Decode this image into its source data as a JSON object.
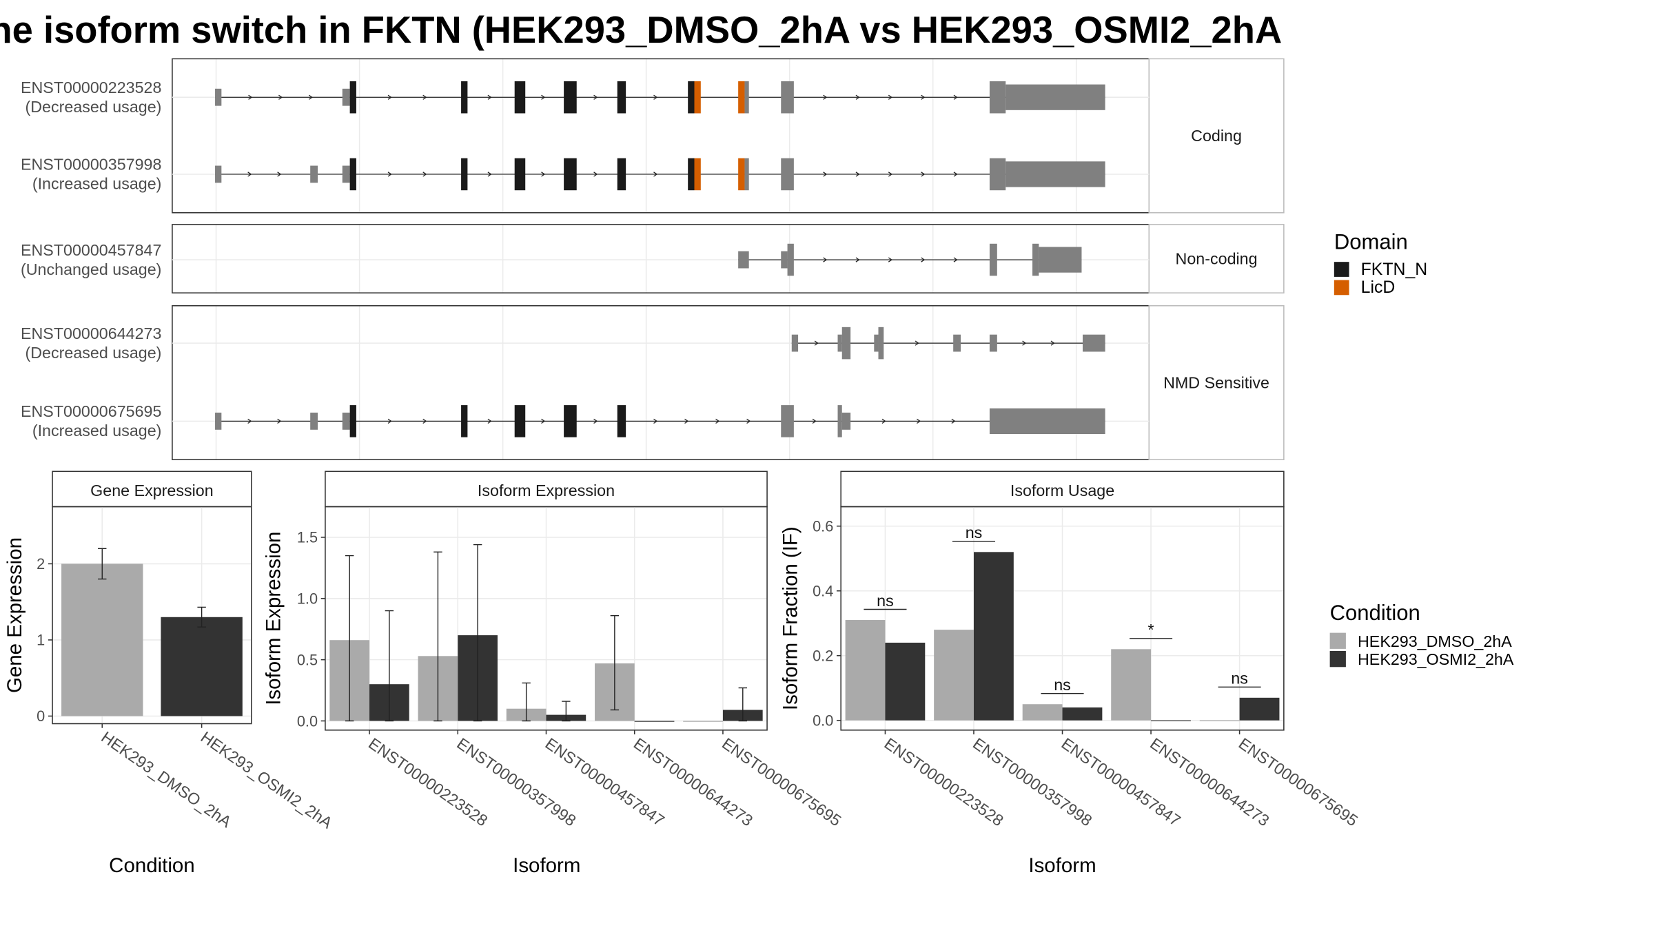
{
  "title": "he isoform switch in FKTN (HEK293_DMSO_2hA vs HEK293_OSMI2_2hA",
  "colors": {
    "fktn_n": "#1a1a1a",
    "licd": "#d55e00",
    "exon_plain": "#808080",
    "dmso": "#aaaaaa",
    "osmi2": "#333333"
  },
  "legends": {
    "domain": {
      "title": "Domain",
      "items": [
        {
          "label": "FKTN_N",
          "color": "#1a1a1a"
        },
        {
          "label": "LicD",
          "color": "#d55e00"
        }
      ]
    },
    "condition": {
      "title": "Condition",
      "items": [
        {
          "label": "HEK293_DMSO_2hA",
          "color": "#aaaaaa"
        },
        {
          "label": "HEK293_OSMI2_2hA",
          "color": "#333333"
        }
      ]
    }
  },
  "transcript_panels": [
    {
      "label": "Coding",
      "transcripts": [
        {
          "id": "ENST00000223528",
          "usage": "(Decreased usage)"
        },
        {
          "id": "ENST00000357998",
          "usage": "(Increased usage)"
        }
      ]
    },
    {
      "label": "Non-coding",
      "transcripts": [
        {
          "id": "ENST00000457847",
          "usage": "(Unchanged usage)"
        }
      ]
    },
    {
      "label": "NMD Sensitive",
      "transcripts": [
        {
          "id": "ENST00000644273",
          "usage": "(Decreased usage)"
        },
        {
          "id": "ENST00000675695",
          "usage": "(Increased usage)"
        }
      ]
    }
  ],
  "chart_data": [
    {
      "type": "bar",
      "title": "Gene Expression",
      "xlabel": "Condition",
      "ylabel": "Gene Expression",
      "categories": [
        "HEK293_DMSO_2hA",
        "HEK293_OSMI2_2hA"
      ],
      "values": [
        2.0,
        1.3
      ],
      "error_low": [
        1.8,
        1.17
      ],
      "error_high": [
        2.2,
        1.43
      ],
      "ylim": [
        -0.1,
        2.75
      ],
      "yticks": [
        0,
        1,
        2
      ]
    },
    {
      "type": "bar",
      "title": "Isoform Expression",
      "xlabel": "Isoform",
      "ylabel": "Isoform Expression",
      "categories": [
        "ENST00000223528",
        "ENST00000357998",
        "ENST00000457847",
        "ENST00000644273",
        "ENST00000675695"
      ],
      "series": [
        {
          "name": "HEK293_DMSO_2hA",
          "values": [
            0.66,
            0.53,
            0.1,
            0.47,
            0.0
          ],
          "error_low": [
            0.0,
            0.0,
            0.0,
            0.09,
            0.0
          ],
          "error_high": [
            1.35,
            1.38,
            0.31,
            0.86,
            0.0
          ]
        },
        {
          "name": "HEK293_OSMI2_2hA",
          "values": [
            0.3,
            0.7,
            0.05,
            0.0,
            0.09
          ],
          "error_low": [
            0.0,
            0.0,
            0.0,
            0.0,
            0.0
          ],
          "error_high": [
            0.9,
            1.44,
            0.16,
            0.0,
            0.27
          ]
        }
      ],
      "ylim": [
        -0.075,
        1.75
      ],
      "yticks": [
        "0.0",
        "0.5",
        "1.0",
        "1.5"
      ]
    },
    {
      "type": "bar",
      "title": "Isoform Usage",
      "xlabel": "Isoform",
      "ylabel": "Isoform Fraction (IF)",
      "categories": [
        "ENST00000223528",
        "ENST00000357998",
        "ENST00000457847",
        "ENST00000644273",
        "ENST00000675695"
      ],
      "series": [
        {
          "name": "HEK293_DMSO_2hA",
          "values": [
            0.31,
            0.28,
            0.05,
            0.22,
            0.0
          ]
        },
        {
          "name": "HEK293_OSMI2_2hA",
          "values": [
            0.24,
            0.52,
            0.04,
            0.0,
            0.07
          ]
        }
      ],
      "significance": [
        "ns",
        "ns",
        "ns",
        "*",
        "ns"
      ],
      "ylim": [
        -0.03,
        0.66
      ],
      "yticks": [
        "0.0",
        "0.2",
        "0.4",
        "0.6"
      ]
    }
  ]
}
